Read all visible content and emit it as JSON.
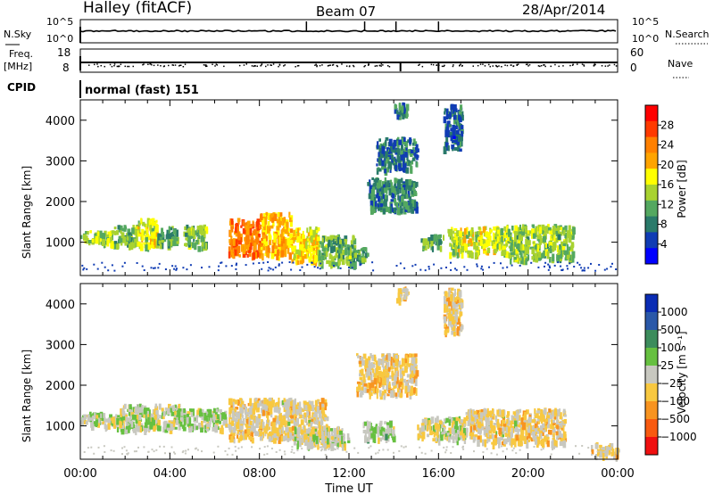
{
  "header": {
    "station": "Halley (fitACF)",
    "beam": "Beam 07",
    "date": "28/Apr/2014"
  },
  "panels": {
    "nsky": {
      "left_label": "N.Sky",
      "right_label": "N.Search",
      "left_ticks": [
        "10^5",
        "10^0"
      ],
      "right_ticks": [
        "10^5",
        "10^0"
      ]
    },
    "freq": {
      "left_label_1": "Freq.",
      "left_label_2": "[MHz]",
      "right_label": "Nave",
      "left_ticks": [
        "18",
        "8"
      ],
      "right_ticks": [
        "60",
        "0"
      ]
    },
    "cpid": {
      "label": "CPID",
      "text": "normal (fast) 151"
    }
  },
  "axes": {
    "x_ticks": [
      "00:00",
      "04:00",
      "08:00",
      "12:00",
      "16:00",
      "20:00",
      "00:00"
    ],
    "x_title": "Time UT",
    "y_title": "Slant Range [km]",
    "y_ticks": [
      "1000",
      "2000",
      "3000",
      "4000"
    ]
  },
  "power_colorbar": {
    "title": "Power [dB]",
    "labels": [
      "28",
      "24",
      "20",
      "16",
      "12",
      "8",
      "4"
    ],
    "colors": [
      "#ff0000",
      "#ff3a00",
      "#ff8000",
      "#ffa400",
      "#ffff00",
      "#a8d230",
      "#54a860",
      "#2a7a6a",
      "#103cb4",
      "#0000ff"
    ]
  },
  "velocity_colorbar": {
    "title": "Velocity [m s⁻¹]",
    "labels": [
      "1000",
      "500",
      "100",
      "25",
      "−25",
      "−100",
      "−500",
      "−1000"
    ],
    "colors": [
      "#0a2cb4",
      "#2a58a8",
      "#3c8c5c",
      "#66c040",
      "#c8c8c0",
      "#f8c840",
      "#f89420",
      "#f85a10",
      "#f01010"
    ]
  },
  "chart_data": [
    {
      "type": "heatmap",
      "title": "Power [dB]",
      "xlabel": "",
      "ylabel": "Slant Range [km]",
      "xlim": [
        "00:00",
        "24:00"
      ],
      "ylim": [
        180,
        4500
      ],
      "zlim": [
        0,
        32
      ],
      "patches": [
        {
          "t": 0.0,
          "t2": 1.5,
          "r": 1000,
          "r2": 1300,
          "v": 14
        },
        {
          "t": 1.5,
          "t2": 2.5,
          "r": 950,
          "r2": 1450,
          "v": 12
        },
        {
          "t": 2.5,
          "t2": 3.4,
          "r": 900,
          "r2": 1600,
          "v": 16
        },
        {
          "t": 3.4,
          "t2": 4.3,
          "r": 950,
          "r2": 1400,
          "v": 10
        },
        {
          "t": 4.6,
          "t2": 5.6,
          "r": 900,
          "r2": 1450,
          "v": 12
        },
        {
          "t": 6.6,
          "t2": 8.0,
          "r": 700,
          "r2": 1600,
          "v": 24
        },
        {
          "t": 8.0,
          "t2": 9.4,
          "r": 700,
          "r2": 1750,
          "v": 21
        },
        {
          "t": 9.4,
          "t2": 10.6,
          "r": 550,
          "r2": 1400,
          "v": 18
        },
        {
          "t": 10.6,
          "t2": 12.2,
          "r": 500,
          "r2": 1200,
          "v": 12
        },
        {
          "t": 12.0,
          "t2": 12.8,
          "r": 600,
          "r2": 900,
          "v": 10
        },
        {
          "t": 12.8,
          "t2": 15.0,
          "r": 1800,
          "r2": 2600,
          "v": 8
        },
        {
          "t": 13.2,
          "t2": 15.0,
          "r": 2800,
          "r2": 3600,
          "v": 7
        },
        {
          "t": 14.0,
          "t2": 14.6,
          "r": 4100,
          "r2": 4450,
          "v": 6
        },
        {
          "t": 15.2,
          "t2": 16.2,
          "r": 900,
          "r2": 1200,
          "v": 10
        },
        {
          "t": 16.2,
          "t2": 17.0,
          "r": 3300,
          "r2": 4400,
          "v": 6
        },
        {
          "t": 16.4,
          "t2": 19.0,
          "r": 750,
          "r2": 1400,
          "v": 16
        },
        {
          "t": 19.0,
          "t2": 22.0,
          "r": 600,
          "r2": 1450,
          "v": 13
        }
      ]
    },
    {
      "type": "heatmap",
      "title": "Velocity [m s⁻¹]",
      "xlabel": "Time UT",
      "ylabel": "Slant Range [km]",
      "xlim": [
        "00:00",
        "24:00"
      ],
      "ylim": [
        180,
        4500
      ],
      "zlim": [
        -1000,
        1000
      ],
      "patches": [
        {
          "t": 0.0,
          "t2": 1.6,
          "r": 1000,
          "r2": 1350,
          "v": 60
        },
        {
          "t": 1.6,
          "t2": 4.5,
          "r": 950,
          "r2": 1550,
          "v": 40
        },
        {
          "t": 4.5,
          "t2": 6.5,
          "r": 950,
          "r2": 1450,
          "v": 80
        },
        {
          "t": 6.6,
          "t2": 11.0,
          "r": 700,
          "r2": 1700,
          "v": -150
        },
        {
          "t": 9.5,
          "t2": 12.0,
          "r": 550,
          "r2": 1000,
          "v": 0
        },
        {
          "t": 12.3,
          "t2": 15.0,
          "r": 1800,
          "r2": 2800,
          "v": -200
        },
        {
          "t": 12.6,
          "t2": 14.0,
          "r": 700,
          "r2": 1150,
          "v": 120
        },
        {
          "t": 14.1,
          "t2": 14.6,
          "r": 4100,
          "r2": 4450,
          "v": -200
        },
        {
          "t": 15.0,
          "t2": 17.2,
          "r": 700,
          "r2": 1250,
          "v": 0
        },
        {
          "t": 16.2,
          "t2": 17.0,
          "r": 3300,
          "r2": 4400,
          "v": -200
        },
        {
          "t": 17.2,
          "t2": 21.6,
          "r": 600,
          "r2": 1450,
          "v": -150
        },
        {
          "t": 22.8,
          "t2": 24.0,
          "r": 300,
          "r2": 600,
          "v": -150
        }
      ]
    },
    {
      "type": "line",
      "title": "",
      "ylabel": "N.Sky / N.Search",
      "note": "noise levels, near-constant trace with a few spikes",
      "spikes_t": [
        10.1,
        12.7,
        14.1,
        16.0
      ]
    },
    {
      "type": "line",
      "title": "",
      "ylabel": "Freq. / Nave",
      "note": "frequency ~11 MHz flat, nave scattered dots with drops",
      "drops_t": [
        14.3,
        16.0
      ]
    }
  ]
}
